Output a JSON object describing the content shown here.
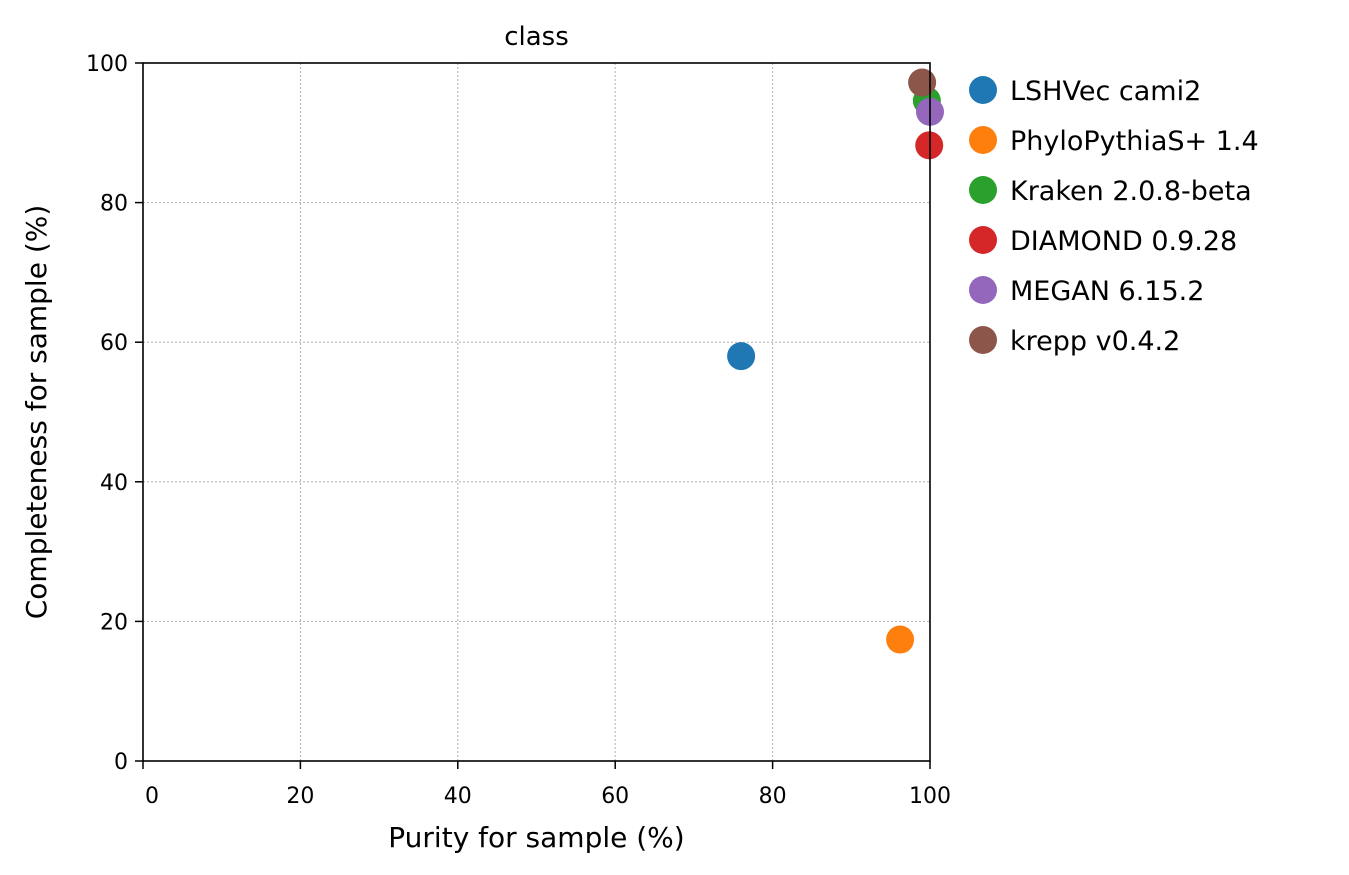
{
  "chart_data": {
    "type": "scatter",
    "title": "class",
    "xlabel": "Purity for sample (%)",
    "ylabel": "Completeness for sample (%)",
    "xlim": [
      0,
      100
    ],
    "ylim": [
      0,
      100
    ],
    "xticks": [
      "0",
      "20",
      "40",
      "60",
      "80",
      "100"
    ],
    "yticks": [
      "0",
      "20",
      "40",
      "60",
      "80",
      "100"
    ],
    "grid": true,
    "legend_position": "outside-right-top",
    "series": [
      {
        "name": "LSHVec cami2",
        "color": "#1f77b4",
        "x": 76.0,
        "y": 58.0
      },
      {
        "name": "PhyloPythiaS+ 1.4",
        "color": "#ff7f0e",
        "x": 96.2,
        "y": 17.4
      },
      {
        "name": "Kraken 2.0.8-beta",
        "color": "#2ca02c",
        "x": 99.6,
        "y": 94.6
      },
      {
        "name": "DIAMOND 0.9.28",
        "color": "#d62728",
        "x": 99.9,
        "y": 88.2
      },
      {
        "name": "MEGAN 6.15.2",
        "color": "#9467bd",
        "x": 100.0,
        "y": 93.0
      },
      {
        "name": "krepp v0.4.2",
        "color": "#8c564b",
        "x": 99.0,
        "y": 97.2
      }
    ]
  }
}
